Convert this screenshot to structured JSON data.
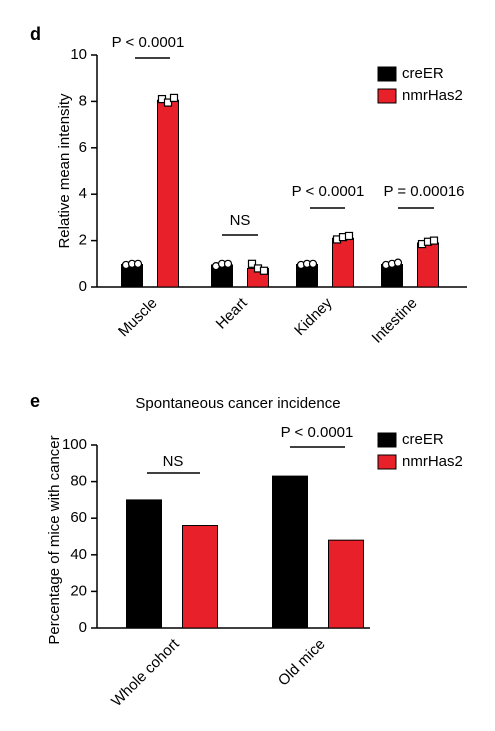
{
  "chart_data": [
    {
      "type": "bar",
      "panel": "d",
      "ylabel": "Relative mean intensity",
      "categories": [
        "Muscle",
        "Heart",
        "Kidney",
        "Intestine"
      ],
      "series": [
        {
          "name": "creER",
          "color": "#000000",
          "values": [
            0.97,
            0.95,
            0.97,
            0.97
          ],
          "points": [
            [
              0.95,
              1.0,
              1.0
            ],
            [
              0.9,
              1.0,
              1.0
            ],
            [
              0.95,
              1.0,
              1.0
            ],
            [
              0.95,
              1.0,
              1.05
            ]
          ]
        },
        {
          "name": "nmrHas2",
          "color": "#e8202a",
          "values": [
            8.05,
            0.8,
            2.1,
            1.9
          ],
          "points": [
            [
              8.1,
              7.95,
              8.15
            ],
            [
              1.0,
              0.8,
              0.7
            ],
            [
              2.05,
              2.15,
              2.2
            ],
            [
              1.85,
              1.95,
              2.0
            ]
          ]
        }
      ],
      "ylim": [
        0,
        10
      ],
      "yticks": [
        0,
        2,
        4,
        6,
        8,
        10
      ],
      "annotations": [
        "P < 0.0001",
        "NS",
        "P < 0.0001",
        "P = 0.00016"
      ]
    },
    {
      "type": "bar",
      "panel": "e",
      "title": "Spontaneous cancer incidence",
      "ylabel": "Percentage of mice with cancer",
      "categories": [
        "Whole cohort",
        "Old mice"
      ],
      "series": [
        {
          "name": "creER",
          "color": "#000000",
          "values": [
            70,
            83
          ]
        },
        {
          "name": "nmrHas2",
          "color": "#e8202a",
          "values": [
            56,
            48
          ]
        }
      ],
      "ylim": [
        0,
        100
      ],
      "yticks": [
        0,
        20,
        40,
        60,
        80,
        100
      ],
      "annotations": [
        "NS",
        "P < 0.0001"
      ]
    }
  ]
}
